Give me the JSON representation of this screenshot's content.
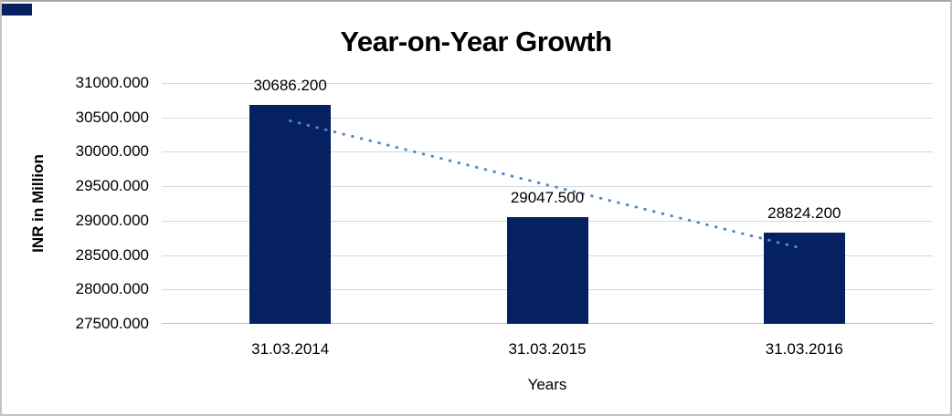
{
  "chart_data": {
    "type": "bar",
    "title": "Year-on-Year Growth",
    "xlabel": "Years",
    "ylabel": "INR in Million",
    "categories": [
      "31.03.2014",
      "31.03.2015",
      "31.03.2016"
    ],
    "values": [
      30686.2,
      29047.5,
      28824.2
    ],
    "data_labels": [
      "30686.200",
      "29047.500",
      "28824.200"
    ],
    "y_tick_labels": [
      "31000.000",
      "30500.000",
      "30000.000",
      "29500.000",
      "29000.000",
      "28500.000",
      "28000.000",
      "27500.000"
    ],
    "ylim": [
      27500,
      31000
    ],
    "y_tick_step": 500,
    "grid": true,
    "legend": "none",
    "bar_color": "#062161",
    "gridline_color": "#D9D9D9",
    "axis_line_color": "#BFBFBF",
    "trendline": {
      "type": "linear",
      "style": "dotted",
      "color": "#4E89C9",
      "values": [
        30450.3,
        29519.3,
        28588.3
      ]
    }
  },
  "decor": {
    "corner_block_color": "#0A2060"
  }
}
